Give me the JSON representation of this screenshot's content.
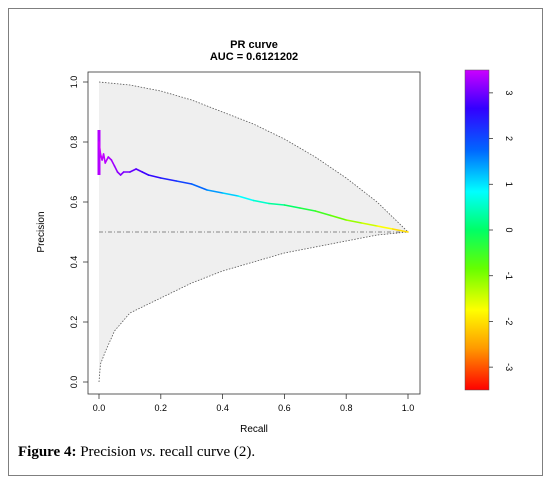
{
  "figure": {
    "caption_label": "Figure 4:",
    "caption_pre": " Precision ",
    "caption_vs": "vs.",
    "caption_post": " recall curve (2)."
  },
  "chart_data": {
    "type": "line",
    "title": "PR curve",
    "subtitle": "AUC = 0.6121202",
    "xlabel": "Recall",
    "ylabel": "Precision",
    "xlim": [
      0,
      1
    ],
    "ylim": [
      0,
      1
    ],
    "x_ticks": [
      "0.0",
      "0.2",
      "0.4",
      "0.6",
      "0.8",
      "1.0"
    ],
    "y_ticks": [
      "0.0",
      "0.2",
      "0.4",
      "0.6",
      "0.8",
      "1.0"
    ],
    "grid": false,
    "reference_line_y": 0.5,
    "max_curve": {
      "x": [
        0,
        0.1,
        0.2,
        0.3,
        0.4,
        0.5,
        0.6,
        0.7,
        0.8,
        0.9,
        0.95,
        1.0
      ],
      "y": [
        1.0,
        0.99,
        0.97,
        0.94,
        0.9,
        0.86,
        0.81,
        0.75,
        0.68,
        0.6,
        0.55,
        0.5
      ]
    },
    "min_curve": {
      "x": [
        0,
        0.005,
        0.02,
        0.05,
        0.1,
        0.2,
        0.3,
        0.4,
        0.5,
        0.6,
        0.7,
        0.8,
        0.9,
        1.0
      ],
      "y": [
        0.0,
        0.06,
        0.1,
        0.17,
        0.23,
        0.28,
        0.33,
        0.37,
        0.4,
        0.43,
        0.45,
        0.47,
        0.49,
        0.5
      ]
    },
    "series": [
      {
        "x": [
          0.0,
          0.005,
          0.01,
          0.015,
          0.02,
          0.03,
          0.04,
          0.05,
          0.06,
          0.07,
          0.08,
          0.1,
          0.12,
          0.14,
          0.16,
          0.2,
          0.25,
          0.3,
          0.35,
          0.4,
          0.45,
          0.5,
          0.55,
          0.6,
          0.65,
          0.7,
          0.75,
          0.8,
          0.85,
          0.9,
          0.95,
          1.0
        ],
        "y": [
          0.8,
          0.76,
          0.74,
          0.76,
          0.73,
          0.75,
          0.74,
          0.72,
          0.7,
          0.69,
          0.7,
          0.7,
          0.71,
          0.7,
          0.69,
          0.68,
          0.67,
          0.66,
          0.64,
          0.63,
          0.62,
          0.605,
          0.595,
          0.59,
          0.58,
          0.57,
          0.555,
          0.54,
          0.53,
          0.52,
          0.51,
          0.5
        ]
      }
    ],
    "colorbar": {
      "ticks": [
        "3",
        "2",
        "1",
        "0",
        "-1",
        "-2",
        "-3"
      ],
      "tick_values": [
        3,
        2,
        1,
        0,
        -1,
        -2,
        -3
      ],
      "range": [
        -3.5,
        3.5
      ],
      "colors": [
        "#ff0000",
        "#ff9900",
        "#ffff00",
        "#66ff00",
        "#00ff66",
        "#00ffff",
        "#0066ff",
        "#3300ff",
        "#cc00ff"
      ]
    }
  }
}
